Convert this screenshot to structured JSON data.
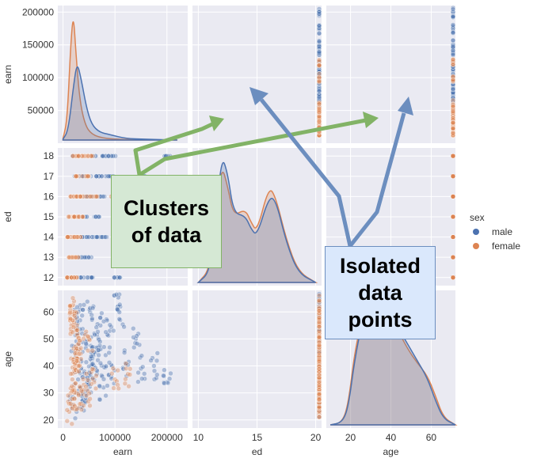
{
  "chart_data": {
    "type": "pairplot",
    "variables": [
      "earn",
      "ed",
      "age"
    ],
    "hue": "sex",
    "legend": {
      "title": "sex",
      "entries": [
        {
          "name": "male",
          "color": "#4c72b0"
        },
        {
          "name": "female",
          "color": "#dd8452"
        }
      ],
      "placement": "right"
    },
    "axes": {
      "earn": {
        "range": [
          -10000,
          240000
        ],
        "ticks": [
          0,
          100000,
          200000
        ],
        "tick_labels": [
          "0",
          "100000",
          "200000"
        ],
        "y_ticks": [
          50000,
          100000,
          150000,
          200000
        ],
        "y_tick_labels": [
          "50000",
          "100000",
          "150000",
          "200000"
        ],
        "y_range": [
          0,
          210000
        ]
      },
      "ed": {
        "range": [
          9.5,
          20.5
        ],
        "ticks": [
          10,
          15,
          20
        ],
        "tick_labels": [
          "10",
          "15",
          "20"
        ],
        "y_ticks": [
          12,
          13,
          14,
          15,
          16,
          17,
          18
        ],
        "y_tick_labels": [
          "12",
          "13",
          "14",
          "15",
          "16",
          "17",
          "18"
        ],
        "y_range": [
          11.6,
          18.4
        ]
      },
      "age": {
        "range": [
          8,
          72
        ],
        "ticks": [
          20,
          40,
          60
        ],
        "tick_labels": [
          "20",
          "40",
          "60"
        ],
        "y_ticks": [
          20,
          30,
          40,
          50,
          60
        ],
        "y_tick_labels": [
          "20",
          "30",
          "40",
          "50",
          "60"
        ],
        "y_range": [
          17,
          68
        ]
      }
    },
    "point_sample": {
      "note_free": true,
      "male": [
        [
          24000,
          18,
          43
        ],
        [
          30000,
          17,
          52
        ],
        [
          41000,
          16,
          38
        ],
        [
          58000,
          18,
          47
        ],
        [
          72000,
          16,
          55
        ],
        [
          93000,
          18,
          36
        ],
        [
          120000,
          16,
          41
        ],
        [
          150000,
          17,
          39
        ],
        [
          200000,
          18,
          34
        ],
        [
          20000,
          12,
          25
        ],
        [
          35000,
          14,
          29
        ],
        [
          48000,
          13,
          33
        ],
        [
          62000,
          14,
          45
        ],
        [
          27000,
          12,
          58
        ],
        [
          33000,
          12,
          61
        ],
        [
          44000,
          14,
          49
        ],
        [
          52000,
          16,
          60
        ],
        [
          65000,
          15,
          37
        ],
        [
          82000,
          18,
          44
        ],
        [
          105000,
          12,
          62
        ],
        [
          110000,
          16,
          57
        ],
        [
          175000,
          16,
          40
        ],
        [
          140000,
          14,
          50
        ],
        [
          90000,
          17,
          53
        ],
        [
          38000,
          15,
          27
        ],
        [
          46000,
          17,
          31
        ],
        [
          29000,
          13,
          35
        ],
        [
          55000,
          12,
          42
        ],
        [
          70000,
          17,
          46
        ],
        [
          78000,
          14,
          32
        ]
      ],
      "female": [
        [
          12000,
          12,
          23
        ],
        [
          15000,
          14,
          30
        ],
        [
          18000,
          13,
          35
        ],
        [
          22000,
          16,
          28
        ],
        [
          25000,
          15,
          44
        ],
        [
          27000,
          17,
          38
        ],
        [
          20000,
          12,
          55
        ],
        [
          16000,
          14,
          62
        ],
        [
          30000,
          16,
          48
        ],
        [
          35000,
          18,
          26
        ],
        [
          23000,
          13,
          41
        ],
        [
          14000,
          15,
          57
        ],
        [
          40000,
          16,
          33
        ],
        [
          28000,
          14,
          52
        ],
        [
          19000,
          12,
          60
        ],
        [
          45000,
          17,
          29
        ],
        [
          32000,
          15,
          46
        ],
        [
          26000,
          18,
          39
        ],
        [
          60000,
          16,
          34
        ],
        [
          100000,
          16,
          35
        ],
        [
          125000,
          14,
          37
        ],
        [
          50000,
          18,
          50
        ]
      ]
    },
    "density_curves": {
      "earn": {
        "male": [
          [
            0,
            0.01
          ],
          [
            10000,
            0.12
          ],
          [
            20000,
            0.68
          ],
          [
            27000,
            1.0
          ],
          [
            35000,
            0.78
          ],
          [
            45000,
            0.42
          ],
          [
            55000,
            0.2
          ],
          [
            70000,
            0.1
          ],
          [
            90000,
            0.07
          ],
          [
            120000,
            0.02
          ],
          [
            160000,
            0.01
          ],
          [
            220000,
            0.0
          ]
        ],
        "female": [
          [
            0,
            0.02
          ],
          [
            8000,
            0.25
          ],
          [
            15000,
            1.25
          ],
          [
            20000,
            1.62
          ],
          [
            25000,
            1.1
          ],
          [
            32000,
            0.52
          ],
          [
            42000,
            0.2
          ],
          [
            55000,
            0.07
          ],
          [
            80000,
            0.02
          ],
          [
            120000,
            0.005
          ],
          [
            220000,
            0.0
          ]
        ]
      },
      "ed": {
        "male": [
          [
            10,
            0.0
          ],
          [
            11,
            0.08
          ],
          [
            11.5,
            0.5
          ],
          [
            12,
            0.95
          ],
          [
            12.5,
            0.82
          ],
          [
            13,
            0.52
          ],
          [
            14,
            0.5
          ],
          [
            14.5,
            0.4
          ],
          [
            15,
            0.35
          ],
          [
            16,
            0.64
          ],
          [
            16.6,
            0.62
          ],
          [
            17.5,
            0.3
          ],
          [
            18.5,
            0.07
          ],
          [
            20,
            0.0
          ]
        ],
        "female": [
          [
            10,
            0.0
          ],
          [
            11,
            0.1
          ],
          [
            11.5,
            0.55
          ],
          [
            12,
            0.88
          ],
          [
            12.5,
            0.72
          ],
          [
            13,
            0.5
          ],
          [
            14,
            0.55
          ],
          [
            14.5,
            0.45
          ],
          [
            15,
            0.38
          ],
          [
            16,
            0.72
          ],
          [
            16.6,
            0.64
          ],
          [
            17.5,
            0.32
          ],
          [
            18.5,
            0.08
          ],
          [
            20,
            0.0
          ]
        ]
      },
      "age": {
        "male": [
          [
            10,
            0.0
          ],
          [
            16,
            0.02
          ],
          [
            19,
            0.15
          ],
          [
            22,
            0.52
          ],
          [
            26,
            0.85
          ],
          [
            31,
            1.0
          ],
          [
            38,
            0.98
          ],
          [
            43,
            0.8
          ],
          [
            48,
            0.66
          ],
          [
            53,
            0.52
          ],
          [
            58,
            0.38
          ],
          [
            62,
            0.2
          ],
          [
            66,
            0.05
          ],
          [
            72,
            0.0
          ]
        ],
        "female": [
          [
            10,
            0.0
          ],
          [
            16,
            0.02
          ],
          [
            19,
            0.18
          ],
          [
            22,
            0.58
          ],
          [
            26,
            0.88
          ],
          [
            31,
            1.02
          ],
          [
            38,
            0.96
          ],
          [
            43,
            0.78
          ],
          [
            48,
            0.62
          ],
          [
            53,
            0.5
          ],
          [
            58,
            0.4
          ],
          [
            62,
            0.24
          ],
          [
            66,
            0.06
          ],
          [
            72,
            0.0
          ]
        ]
      }
    }
  },
  "callouts": {
    "clusters": "Clusters\nof data",
    "isolated": "Isolated\ndata\npoints"
  },
  "colors": {
    "panel_bg": "#eaeaf2",
    "grid": "#ffffff",
    "male": "#4c72b0",
    "female": "#dd8452",
    "arrow_green": "#82b366",
    "arrow_blue": "#6c8ebf"
  }
}
